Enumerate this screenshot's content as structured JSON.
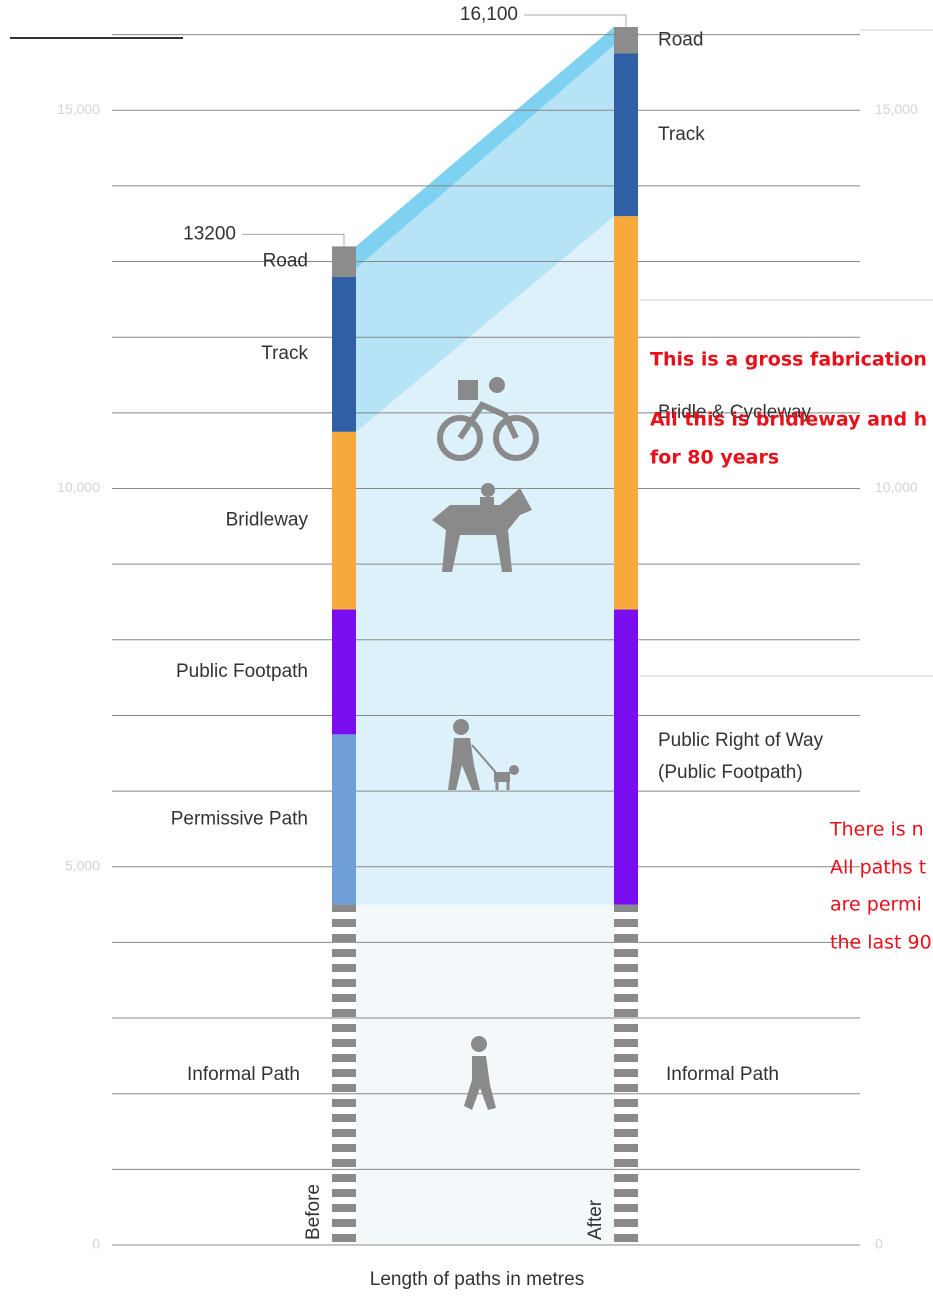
{
  "chart_data": {
    "type": "stacked-columns",
    "x_axis_label": "Length of paths in metres",
    "ylim": [
      0,
      16100
    ],
    "yticks": [
      0,
      {
        "value": 5000,
        "label": "5,000"
      },
      {
        "value": 10000,
        "label": "10,000"
      },
      {
        "value": 15000,
        "label": "15,000"
      }
    ],
    "minor_yticks": [
      1000,
      2000,
      3000,
      4000,
      6000,
      7000,
      8000,
      9000,
      11000,
      12000,
      13000,
      14000,
      16000
    ],
    "grid": true,
    "columns": [
      {
        "name": "Before",
        "total": 13200,
        "total_label": "13200",
        "segments": [
          {
            "name": "Informal Path",
            "value": 4500,
            "color": "#8a8a8a",
            "dashed": true
          },
          {
            "name": "Permissive Path",
            "value": 2250,
            "color": "#6f9fd6"
          },
          {
            "name": "Public Footpath",
            "value": 1650,
            "color": "#7a0df0"
          },
          {
            "name": "Bridleway",
            "value": 2350,
            "color": "#f7a93b"
          },
          {
            "name": "Track",
            "value": 2050,
            "color": "#2f5fa5"
          },
          {
            "name": "Road",
            "value": 400,
            "color": "#8c8c8c"
          }
        ]
      },
      {
        "name": "After",
        "total": 16100,
        "total_label": "16,100",
        "segments": [
          {
            "name": "Informal Path",
            "value": 4500,
            "color": "#8a8a8a",
            "dashed": true
          },
          {
            "name_lines": [
              "Public Right of Way",
              "(Public Footpath)"
            ],
            "value": 3900,
            "color": "#7a0df0"
          },
          {
            "name": "Bridle & Cycleway",
            "value": 5200,
            "color": "#f7a93b"
          },
          {
            "name": "Track",
            "value": 2150,
            "color": "#2f5fa5"
          },
          {
            "name": "Road",
            "value": 350,
            "color": "#8c8c8c"
          }
        ]
      }
    ],
    "annotations": {
      "bold": [
        "This is  a gross fabrication",
        "All this is  bridleway and h",
        "for 80 years"
      ],
      "plain": [
        "There is  n",
        "All paths t",
        "are permi",
        "the last 90"
      ]
    }
  }
}
